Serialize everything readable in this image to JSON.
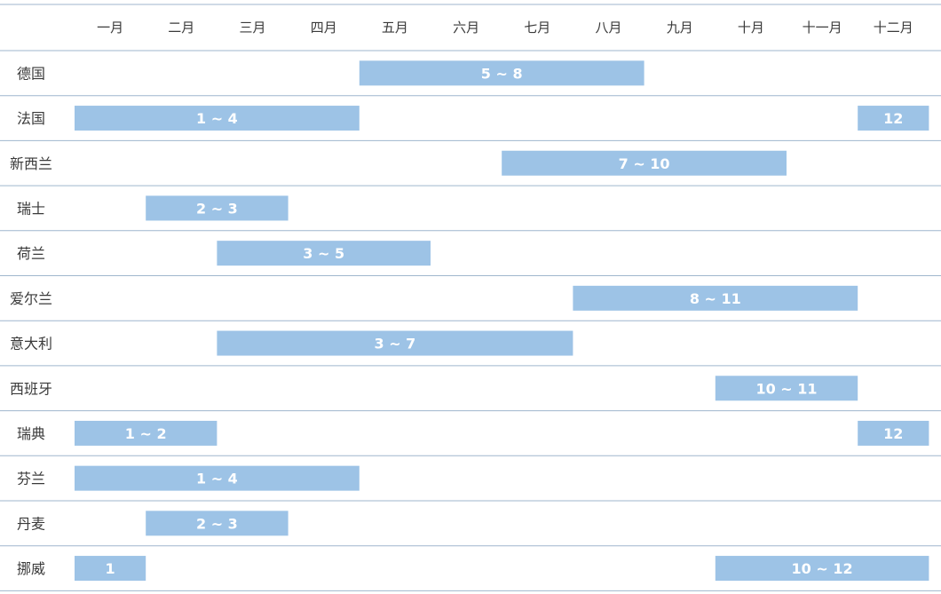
{
  "chart_data": {
    "type": "gantt",
    "months": [
      "一月",
      "二月",
      "三月",
      "四月",
      "五月",
      "六月",
      "七月",
      "八月",
      "九月",
      "十月",
      "十一月",
      "十二月"
    ],
    "colors": {
      "bar": "#9dc3e6",
      "line": "#9fb6cd",
      "text": "#3a3a3a",
      "bar_text": "#ffffff"
    },
    "rows": [
      {
        "country": "德国",
        "ranges": [
          {
            "start": 5,
            "end": 8,
            "label": "5 ~ 8"
          }
        ]
      },
      {
        "country": "法国",
        "ranges": [
          {
            "start": 1,
            "end": 4,
            "label": "1 ~ 4"
          },
          {
            "start": 12,
            "end": 12,
            "label": "12"
          }
        ]
      },
      {
        "country": "新西兰",
        "ranges": [
          {
            "start": 7,
            "end": 10,
            "label": "7 ~ 10"
          }
        ]
      },
      {
        "country": "瑞士",
        "ranges": [
          {
            "start": 2,
            "end": 3,
            "label": "2 ~ 3"
          }
        ]
      },
      {
        "country": "荷兰",
        "ranges": [
          {
            "start": 3,
            "end": 5,
            "label": "3 ~ 5"
          }
        ]
      },
      {
        "country": "爱尔兰",
        "ranges": [
          {
            "start": 8,
            "end": 11,
            "label": "8 ~ 11"
          }
        ]
      },
      {
        "country": "意大利",
        "ranges": [
          {
            "start": 3,
            "end": 7,
            "label": "3 ~ 7"
          }
        ]
      },
      {
        "country": "西班牙",
        "ranges": [
          {
            "start": 10,
            "end": 11,
            "label": "10 ~ 11"
          }
        ]
      },
      {
        "country": "瑞典",
        "ranges": [
          {
            "start": 1,
            "end": 2,
            "label": "1 ~ 2"
          },
          {
            "start": 12,
            "end": 12,
            "label": "12"
          }
        ]
      },
      {
        "country": "芬兰",
        "ranges": [
          {
            "start": 1,
            "end": 4,
            "label": "1 ~ 4"
          }
        ]
      },
      {
        "country": "丹麦",
        "ranges": [
          {
            "start": 2,
            "end": 3,
            "label": "2 ~ 3"
          }
        ]
      },
      {
        "country": "挪威",
        "ranges": [
          {
            "start": 1,
            "end": 1,
            "label": "1"
          },
          {
            "start": 10,
            "end": 12,
            "label": "10 ~ 12"
          }
        ]
      }
    ]
  }
}
